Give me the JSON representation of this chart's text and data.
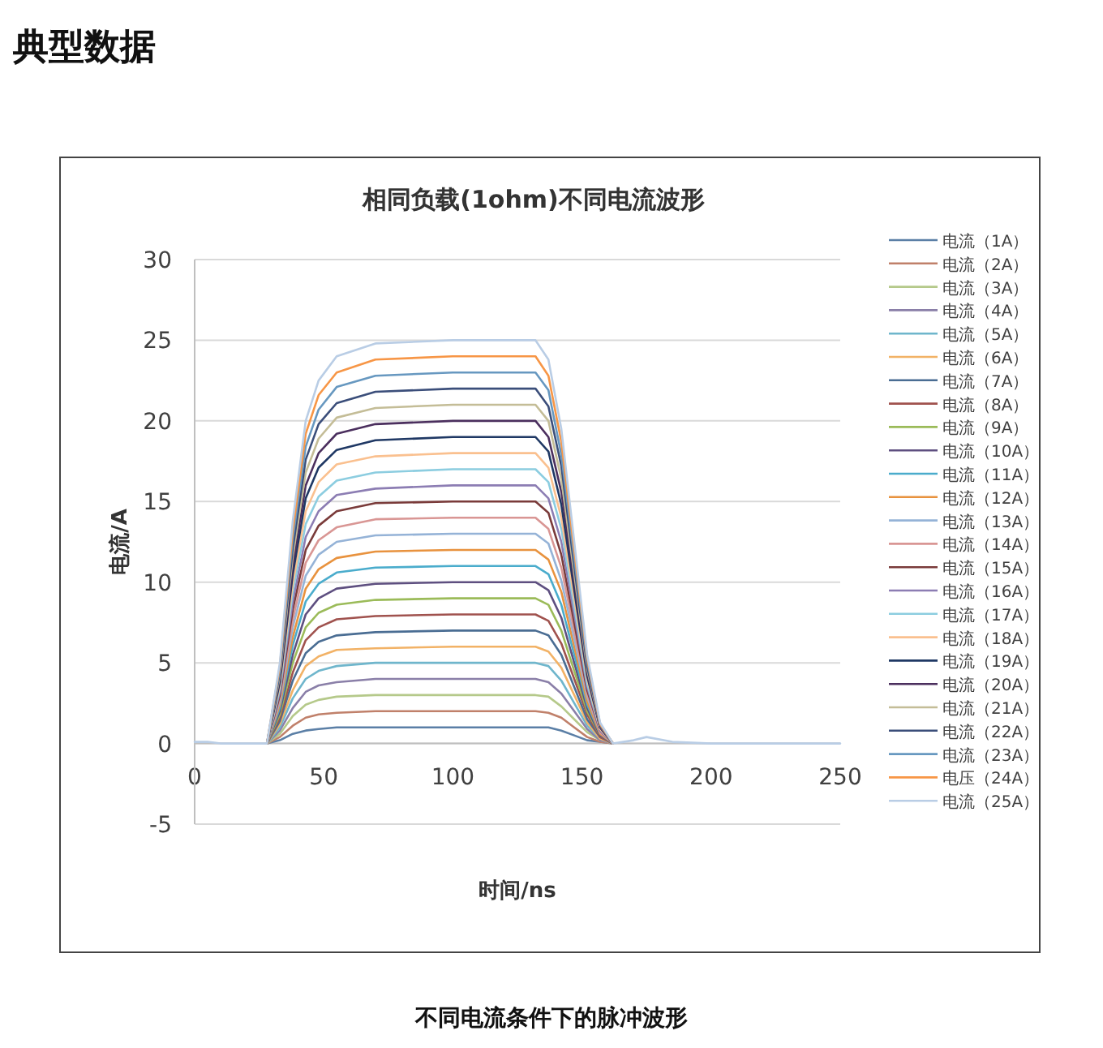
{
  "chart_data": {
    "type": "line",
    "title": "相同负载(1ohm)不同电流波形",
    "xlabel": "时间/ns",
    "ylabel": "电流/A",
    "annotations": [
      "典型数据",
      "不同电流条件下的脉冲波形"
    ],
    "x": [
      0,
      5,
      10,
      20,
      28,
      33,
      38,
      43,
      48,
      55,
      70,
      100,
      125,
      132,
      137,
      142,
      147,
      152,
      157,
      162,
      170,
      175,
      185,
      200,
      250
    ],
    "xlim": [
      0,
      250
    ],
    "xticks": [
      0,
      50,
      100,
      150,
      200,
      250
    ],
    "ylim": [
      -5,
      30
    ],
    "yticks": [
      -5,
      0,
      5,
      10,
      15,
      20,
      25,
      30
    ],
    "grid": "y",
    "legend": "right",
    "line_style": "solid",
    "marker": "none",
    "series": [
      {
        "name": "电流（1A）",
        "color": "#5b7fa6",
        "values": [
          null,
          null,
          null,
          null,
          0,
          0.2,
          0.6,
          0.8,
          0.9,
          1,
          1,
          1,
          1,
          1,
          1,
          0.8,
          0.5,
          0.2,
          0.1,
          0,
          null,
          null,
          null,
          null,
          null
        ]
      },
      {
        "name": "电流（2A）",
        "color": "#c0806a",
        "values": [
          null,
          null,
          null,
          null,
          0,
          0.4,
          1.1,
          1.6,
          1.8,
          1.9,
          2,
          2,
          2,
          2,
          1.9,
          1.6,
          1,
          0.4,
          0.1,
          0,
          null,
          null,
          null,
          null,
          null
        ]
      },
      {
        "name": "电流（3A）",
        "color": "#b5c98a",
        "values": [
          null,
          null,
          null,
          null,
          0,
          0.6,
          1.7,
          2.4,
          2.7,
          2.9,
          3,
          3,
          3,
          3,
          2.9,
          2.3,
          1.5,
          0.7,
          0.2,
          0,
          null,
          null,
          null,
          null,
          null
        ]
      },
      {
        "name": "电流（4A）",
        "color": "#8a7fa8",
        "values": [
          null,
          null,
          null,
          null,
          0,
          0.8,
          2.2,
          3.2,
          3.6,
          3.8,
          4,
          4,
          4,
          4,
          3.8,
          3.1,
          2,
          0.9,
          0.2,
          0,
          null,
          null,
          null,
          null,
          null
        ]
      },
      {
        "name": "电流（5A）",
        "color": "#6fb6cc",
        "values": [
          null,
          null,
          null,
          null,
          0,
          1,
          2.8,
          4,
          4.5,
          4.8,
          5,
          5,
          5,
          5,
          4.8,
          3.9,
          2.5,
          1.1,
          0.3,
          0,
          null,
          null,
          null,
          null,
          null
        ]
      },
      {
        "name": "电流（6A）",
        "color": "#f2b266",
        "values": [
          null,
          null,
          null,
          null,
          0,
          1.2,
          3.3,
          4.8,
          5.4,
          5.8,
          5.9,
          6,
          6,
          6,
          5.7,
          4.7,
          3,
          1.3,
          0.3,
          0,
          null,
          null,
          null,
          null,
          null
        ]
      },
      {
        "name": "电流（7A）",
        "color": "#4a6d93",
        "values": [
          null,
          null,
          null,
          null,
          0,
          1.4,
          3.9,
          5.6,
          6.3,
          6.7,
          6.9,
          7,
          7,
          7,
          6.7,
          5.5,
          3.5,
          1.5,
          0.4,
          0,
          null,
          null,
          null,
          null,
          null
        ]
      },
      {
        "name": "电流（8A）",
        "color": "#a0524e",
        "values": [
          null,
          null,
          null,
          null,
          0,
          1.6,
          4.4,
          6.4,
          7.2,
          7.7,
          7.9,
          8,
          8,
          8,
          7.6,
          6.2,
          4,
          1.8,
          0.4,
          0,
          null,
          null,
          null,
          null,
          null
        ]
      },
      {
        "name": "电流（9A）",
        "color": "#9bbb59",
        "values": [
          null,
          null,
          null,
          null,
          0,
          1.8,
          5,
          7.2,
          8.1,
          8.6,
          8.9,
          9,
          9,
          9,
          8.6,
          7,
          4.5,
          2,
          0.5,
          0,
          null,
          null,
          null,
          null,
          null
        ]
      },
      {
        "name": "电流（10A）",
        "color": "#5e4f80",
        "values": [
          null,
          null,
          null,
          null,
          0,
          2,
          5.5,
          8,
          9,
          9.6,
          9.9,
          10,
          10,
          10,
          9.5,
          7.8,
          5,
          2.2,
          0.5,
          0,
          null,
          null,
          null,
          null,
          null
        ]
      },
      {
        "name": "电流（11A）",
        "color": "#4aaccc",
        "values": [
          null,
          null,
          null,
          null,
          0,
          2.2,
          6.1,
          8.8,
          9.9,
          10.6,
          10.9,
          11,
          11,
          11,
          10.5,
          8.6,
          5.5,
          2.4,
          0.6,
          0,
          null,
          null,
          null,
          null,
          null
        ]
      },
      {
        "name": "电流（12A）",
        "color": "#e8923e",
        "values": [
          null,
          null,
          null,
          null,
          0,
          2.4,
          6.6,
          9.6,
          10.8,
          11.5,
          11.9,
          12,
          12,
          12,
          11.4,
          9.4,
          6,
          2.6,
          0.6,
          0,
          null,
          null,
          null,
          null,
          null
        ]
      },
      {
        "name": "电流（13A）",
        "color": "#95b3d7",
        "values": [
          null,
          null,
          null,
          null,
          0,
          2.6,
          7.2,
          10.4,
          11.7,
          12.5,
          12.9,
          13,
          13,
          13,
          12.4,
          10.1,
          6.5,
          2.9,
          0.7,
          0,
          null,
          null,
          null,
          null,
          null
        ]
      },
      {
        "name": "电流（14A）",
        "color": "#d99694",
        "values": [
          null,
          null,
          null,
          null,
          0,
          2.8,
          7.7,
          11.2,
          12.6,
          13.4,
          13.9,
          14,
          14,
          14,
          13.3,
          10.9,
          7,
          3.1,
          0.7,
          0,
          null,
          null,
          null,
          null,
          null
        ]
      },
      {
        "name": "电流（15A）",
        "color": "#7a3b3a",
        "values": [
          null,
          null,
          null,
          null,
          0,
          3,
          8.3,
          12,
          13.5,
          14.4,
          14.9,
          15,
          15,
          15,
          14.3,
          11.7,
          7.5,
          3.3,
          0.8,
          0,
          null,
          null,
          null,
          null,
          null
        ]
      },
      {
        "name": "电流（16A）",
        "color": "#8c7db3",
        "values": [
          null,
          null,
          null,
          null,
          0,
          3.2,
          8.8,
          12.8,
          14.4,
          15.4,
          15.8,
          16,
          16,
          16,
          15.2,
          12.5,
          8,
          3.5,
          0.8,
          0,
          null,
          null,
          null,
          null,
          null
        ]
      },
      {
        "name": "电流（17A）",
        "color": "#8ccde0",
        "values": [
          null,
          null,
          null,
          null,
          0,
          3.4,
          9.4,
          13.6,
          15.3,
          16.3,
          16.8,
          17,
          17,
          17,
          16.2,
          13.3,
          8.5,
          3.7,
          0.9,
          0,
          null,
          null,
          null,
          null,
          null
        ]
      },
      {
        "name": "电流（18A）",
        "color": "#fac08f",
        "values": [
          null,
          null,
          null,
          null,
          0,
          3.6,
          9.9,
          14.4,
          16.2,
          17.3,
          17.8,
          18,
          18,
          18,
          17.1,
          14,
          9,
          4,
          0.9,
          0,
          null,
          null,
          null,
          null,
          null
        ]
      },
      {
        "name": "电流（19A）",
        "color": "#1f3864",
        "values": [
          null,
          null,
          null,
          null,
          0,
          3.8,
          10.5,
          15.2,
          17.1,
          18.2,
          18.8,
          19,
          19,
          19,
          18.1,
          14.8,
          9.5,
          4.2,
          1,
          0,
          null,
          null,
          null,
          null,
          null
        ]
      },
      {
        "name": "电流（20A）",
        "color": "#4b2f5e",
        "values": [
          null,
          null,
          null,
          null,
          0,
          4,
          11,
          16,
          18,
          19.2,
          19.8,
          20,
          20,
          20,
          19,
          15.6,
          10,
          4.4,
          1,
          0,
          null,
          null,
          null,
          null,
          null
        ]
      },
      {
        "name": "电流（21A）",
        "color": "#c4bd97",
        "values": [
          null,
          null,
          null,
          null,
          0,
          4.2,
          11.6,
          16.8,
          18.9,
          20.2,
          20.8,
          21,
          21,
          21,
          20,
          16.4,
          10.5,
          4.6,
          1.1,
          0,
          null,
          null,
          null,
          null,
          null
        ]
      },
      {
        "name": "电流（22A）",
        "color": "#3b4e7a",
        "values": [
          null,
          null,
          null,
          null,
          0,
          4.4,
          12.1,
          17.6,
          19.8,
          21.1,
          21.8,
          22,
          22,
          22,
          20.9,
          17.2,
          11,
          4.8,
          1.1,
          0,
          null,
          null,
          null,
          null,
          null
        ]
      },
      {
        "name": "电流（23A）",
        "color": "#6798c0",
        "values": [
          null,
          null,
          null,
          null,
          0,
          4.6,
          12.7,
          18.4,
          20.7,
          22.1,
          22.8,
          23,
          23,
          23,
          21.9,
          17.9,
          11.5,
          5.1,
          1.2,
          0,
          null,
          null,
          null,
          null,
          null
        ]
      },
      {
        "name": "电压（24A）",
        "color": "#f79646",
        "values": [
          null,
          null,
          null,
          null,
          0,
          4.8,
          13.2,
          19.2,
          21.6,
          23,
          23.8,
          24,
          24,
          24,
          22.8,
          18.7,
          12,
          5.3,
          1.2,
          0,
          null,
          null,
          null,
          null,
          null
        ]
      },
      {
        "name": "电流（25A）",
        "color": "#b9cde5",
        "values": [
          0.1,
          0.1,
          0,
          0,
          0,
          5,
          13.8,
          20,
          22.5,
          24,
          24.8,
          25,
          25,
          25,
          23.8,
          19.5,
          12.5,
          5.5,
          1.3,
          0,
          0.2,
          0.4,
          0.1,
          0,
          0
        ]
      }
    ]
  }
}
